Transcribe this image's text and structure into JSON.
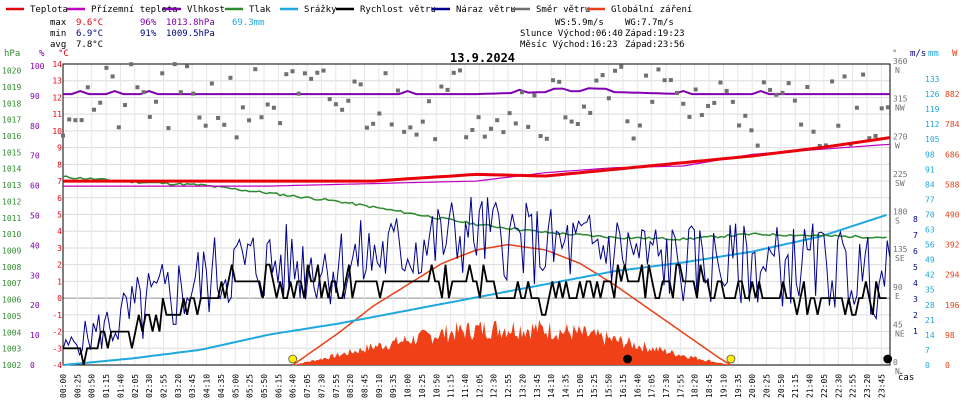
{
  "chart_data": {
    "type": "line",
    "title": "13.9.2024",
    "legend": [
      {
        "name": "Teplota",
        "color": "#e8000b"
      },
      {
        "name": "Přízemní teplota",
        "color": "#c000c0"
      },
      {
        "name": "Vlhkost",
        "color": "#8000b0"
      },
      {
        "name": "Tlak",
        "color": "#2e8b2e"
      },
      {
        "name": "Srážky",
        "color": "#1ea8e0"
      },
      {
        "name": "Rychlost větru",
        "color": "#000000"
      },
      {
        "name": "Náraz větru",
        "color": "#00008b"
      },
      {
        "name": "Směr větru",
        "color": "#707070"
      },
      {
        "name": "Globální záření",
        "color": "#e84018"
      }
    ],
    "stats": {
      "max_label": "max",
      "max_temp": "9.6°C",
      "max_hum": "96%",
      "max_press": "1013.8hPa",
      "max_rain": "69.3mm",
      "min_label": "min",
      "min_temp": "6.9°C",
      "min_hum": "91%",
      "min_press": "1009.5hPa",
      "avg_label": "avg",
      "avg_temp": "7.8°C",
      "ws": "WS:5.9m/s",
      "wg": "WG:7.7m/s",
      "sun": "Slunce Východ:06:40",
      "sun_set": "Západ:19:23",
      "moon": "Měsíc  Východ:16:23",
      "moon_set": "Západ:23:56"
    },
    "axes": {
      "hpa_title": "hPa",
      "pct_title": "%",
      "temp_title": "°C",
      "dir_title": "°",
      "ms_title": "m/s",
      "mm_title": "mm",
      "w_title": "W",
      "xlabel": "čas",
      "hpa_ticks": [
        "1020",
        "1019",
        "1018",
        "1017",
        "1016",
        "1015",
        "1014",
        "1013",
        "1012",
        "1011",
        "1010",
        "1009",
        "1008",
        "1007",
        "1006",
        "1005",
        "1004",
        "1003",
        "1002"
      ],
      "pct_ticks": [
        "100",
        "90",
        "80",
        "70",
        "60",
        "50",
        "40",
        "30",
        "20",
        "10",
        "0"
      ],
      "temp_ticks": [
        "14",
        "13",
        "12",
        "11",
        "10",
        "9",
        "8",
        "7",
        "6",
        "5",
        "4",
        "3",
        "2",
        "1",
        "0",
        "-1",
        "-2",
        "-3",
        "-4"
      ],
      "dir_ticks": [
        "360",
        "315",
        "270",
        "225",
        "180",
        "135",
        "90",
        "45",
        "0"
      ],
      "dir_names": [
        "N",
        "NW",
        "W",
        "SW",
        "S",
        "SE",
        "E",
        "NE",
        "N"
      ],
      "ms_ticks": [
        "8",
        "7",
        "6",
        "5",
        "4",
        "3",
        "2",
        "1"
      ],
      "mm_ticks": [
        "133",
        "126",
        "119",
        "112",
        "105",
        "98",
        "91",
        "84",
        "77",
        "70",
        "63",
        "56",
        "49",
        "42",
        "35",
        "28",
        "21",
        "14",
        "7",
        "0"
      ],
      "w_ticks": [
        "882",
        "784",
        "686",
        "588",
        "490",
        "392",
        "294",
        "196",
        "98",
        "0"
      ],
      "temp_range": [
        -4,
        14
      ],
      "time_ticks": [
        "00:00",
        "00:25",
        "00:50",
        "01:15",
        "01:40",
        "02:05",
        "02:30",
        "02:55",
        "03:20",
        "03:45",
        "04:10",
        "04:35",
        "05:00",
        "05:25",
        "05:50",
        "06:15",
        "06:40",
        "07:05",
        "07:30",
        "07:55",
        "08:20",
        "08:45",
        "09:10",
        "09:35",
        "10:00",
        "10:25",
        "10:50",
        "11:15",
        "11:40",
        "12:05",
        "12:30",
        "12:55",
        "13:20",
        "13:45",
        "14:10",
        "14:35",
        "15:00",
        "15:25",
        "15:50",
        "16:15",
        "16:40",
        "17:05",
        "17:30",
        "17:55",
        "18:20",
        "18:45",
        "19:10",
        "19:35",
        "20:00",
        "20:25",
        "20:50",
        "21:15",
        "21:40",
        "22:05",
        "22:30",
        "22:55",
        "23:20",
        "23:45"
      ]
    },
    "series": [
      {
        "name": "Teplota",
        "unit": "°C",
        "x_hours": [
          0,
          3,
          6,
          9,
          12,
          14,
          18,
          20,
          22,
          24
        ],
        "values": [
          7.0,
          7.0,
          7.0,
          7.0,
          7.4,
          7.3,
          8.1,
          8.5,
          9.0,
          9.6
        ]
      },
      {
        "name": "Přízemní teplota",
        "unit": "°C",
        "x_hours": [
          0,
          6,
          12,
          14,
          16,
          18,
          20,
          22,
          24
        ],
        "values": [
          6.7,
          6.7,
          7.0,
          7.5,
          7.8,
          7.9,
          8.6,
          8.9,
          9.2
        ]
      },
      {
        "name": "Vlhkost",
        "unit": "%",
        "x_hours": [
          0,
          3,
          6,
          9,
          12,
          15,
          18,
          21,
          24
        ],
        "values": [
          92,
          92,
          92,
          92,
          92,
          93,
          92,
          92,
          92
        ]
      },
      {
        "name": "Tlak",
        "unit": "hPa",
        "x_hours": [
          0,
          2,
          4,
          6,
          8,
          10,
          12,
          14,
          16,
          18,
          20,
          22,
          24
        ],
        "values": [
          1013.5,
          1013.2,
          1013.0,
          1012.5,
          1012.0,
          1011.3,
          1010.6,
          1010.1,
          1009.8,
          1009.7,
          1010.0,
          1009.9,
          1009.8
        ]
      },
      {
        "name": "Srážky",
        "unit": "mm",
        "x_hours": [
          0,
          2,
          4,
          6,
          8,
          10,
          12,
          14,
          16,
          18,
          20,
          22,
          24
        ],
        "values": [
          0,
          3,
          7,
          14,
          19,
          25,
          31,
          37,
          43,
          47,
          52,
          59,
          69.3
        ]
      },
      {
        "name": "Rychlost větru",
        "unit": "°C-scale",
        "x_hours": [
          0,
          1,
          2,
          3,
          4,
          5,
          6,
          8,
          10,
          12,
          14,
          16,
          18,
          20,
          22,
          24
        ],
        "values": [
          -3,
          -3,
          -2,
          -1,
          0,
          1,
          1,
          1,
          1,
          1,
          0,
          1,
          1,
          0,
          0,
          0
        ]
      },
      {
        "name": "Náraz větru",
        "unit": "°C-scale",
        "x_hours": [
          0,
          1,
          2,
          3,
          4,
          5,
          6,
          8,
          10,
          12,
          14,
          16,
          18,
          20,
          22,
          24
        ],
        "values": [
          -3,
          -2,
          -1,
          0,
          1,
          2,
          2,
          2,
          3,
          4,
          3,
          3,
          2,
          2,
          2,
          1
        ]
      },
      {
        "name": "Globální záření",
        "unit": "W",
        "x_hours": [
          6.67,
          8,
          9,
          10,
          11,
          12,
          12.9,
          14,
          15,
          16,
          17,
          18,
          19,
          19.38
        ],
        "values": [
          0,
          120,
          220,
          300,
          380,
          430,
          450,
          430,
          380,
          300,
          210,
          120,
          30,
          0
        ]
      }
    ],
    "sun_markers": [
      "06:40",
      "19:23"
    ],
    "moon_markers": [
      "16:23",
      "23:56"
    ]
  }
}
